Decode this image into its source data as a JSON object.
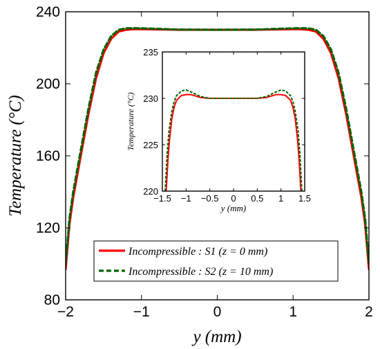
{
  "chart_data": [
    {
      "id": "main",
      "type": "line",
      "title": "",
      "xlabel": "y (mm)",
      "ylabel": "Temperature (°C)",
      "xlim": [
        -2,
        2
      ],
      "ylim": [
        80,
        240
      ],
      "xticks": [
        -2,
        -1,
        0,
        1,
        2
      ],
      "yticks": [
        80,
        120,
        160,
        200,
        240
      ],
      "xtick_labels": [
        "−2",
        "−1",
        "0",
        "1",
        "2"
      ],
      "ytick_labels": [
        "80",
        "120",
        "160",
        "200",
        "240"
      ],
      "grid": false,
      "legend_position": "bottom-center",
      "series": [
        {
          "name": "Incompressible : S1 (z = 0 mm)",
          "color": "#ff0000",
          "style": "solid",
          "x": [
            -2.0,
            -1.95,
            -1.9,
            -1.8,
            -1.7,
            -1.6,
            -1.5,
            -1.4,
            -1.3,
            -1.2,
            -1.1,
            -1.0,
            -0.5,
            0.0,
            0.5,
            1.0,
            1.1,
            1.2,
            1.3,
            1.4,
            1.5,
            1.6,
            1.7,
            1.8,
            1.9,
            1.95,
            2.0
          ],
          "y": [
            97,
            122,
            137,
            160,
            183,
            203,
            217,
            225,
            229,
            230,
            230.3,
            230.3,
            230.0,
            230.0,
            230.0,
            230.3,
            230.3,
            230,
            229,
            225,
            217,
            203,
            183,
            160,
            137,
            122,
            97
          ]
        },
        {
          "name": "Incompressible : S2 (z = 10 mm)",
          "color": "#006400",
          "style": "dashed",
          "x": [
            -2.0,
            -1.95,
            -1.9,
            -1.8,
            -1.7,
            -1.6,
            -1.5,
            -1.4,
            -1.3,
            -1.2,
            -1.1,
            -1.0,
            -0.5,
            0.0,
            0.5,
            1.0,
            1.1,
            1.2,
            1.3,
            1.4,
            1.5,
            1.6,
            1.7,
            1.8,
            1.9,
            1.95,
            2.0
          ],
          "y": [
            100,
            125,
            140,
            163,
            186,
            206,
            219,
            226.5,
            230,
            230.8,
            230.9,
            230.8,
            230.1,
            230.0,
            230.1,
            230.8,
            230.9,
            230.8,
            230,
            226.5,
            219,
            206,
            186,
            163,
            140,
            125,
            100
          ]
        }
      ]
    },
    {
      "id": "inset",
      "type": "line",
      "title": "",
      "xlabel": "y (mm)",
      "ylabel": "Temperature (°C)",
      "xlim": [
        -1.5,
        1.5
      ],
      "ylim": [
        220,
        235
      ],
      "xticks": [
        -1.5,
        -1,
        -0.5,
        0,
        0.5,
        1,
        1.5
      ],
      "yticks": [
        220,
        225,
        230,
        235
      ],
      "xtick_labels": [
        "−1.5",
        "−1",
        "−0.5",
        "0",
        "0.5",
        "1",
        "1.5"
      ],
      "ytick_labels": [
        "220",
        "225",
        "230",
        "235"
      ],
      "grid": false,
      "series": [
        {
          "name": "Incompressible : S1 (z = 0 mm)",
          "color": "#ff0000",
          "style": "solid",
          "x": [
            -1.42,
            -1.38,
            -1.35,
            -1.3,
            -1.25,
            -1.2,
            -1.1,
            -1.0,
            -0.9,
            -0.7,
            -0.5,
            0.0,
            0.5,
            0.7,
            0.9,
            1.0,
            1.1,
            1.2,
            1.25,
            1.3,
            1.35,
            1.38,
            1.42
          ],
          "y": [
            220,
            223.5,
            225.5,
            227.8,
            229.1,
            229.8,
            230.3,
            230.4,
            230.4,
            230.1,
            230.0,
            230.0,
            230.0,
            230.1,
            230.4,
            230.4,
            230.3,
            229.8,
            229.1,
            227.8,
            225.5,
            223.5,
            220
          ]
        },
        {
          "name": "Incompressible : S2 (z = 10 mm)",
          "color": "#006400",
          "style": "dashed",
          "x": [
            -1.44,
            -1.4,
            -1.36,
            -1.3,
            -1.25,
            -1.2,
            -1.1,
            -1.0,
            -0.9,
            -0.7,
            -0.5,
            0.0,
            0.5,
            0.7,
            0.9,
            1.0,
            1.1,
            1.2,
            1.25,
            1.3,
            1.36,
            1.4,
            1.44
          ],
          "y": [
            220,
            224,
            226.5,
            228.6,
            229.7,
            230.3,
            230.8,
            230.9,
            230.7,
            230.2,
            230.0,
            230.0,
            230.0,
            230.2,
            230.7,
            230.9,
            230.8,
            230.3,
            229.7,
            228.6,
            226.5,
            224,
            220
          ]
        }
      ]
    }
  ]
}
